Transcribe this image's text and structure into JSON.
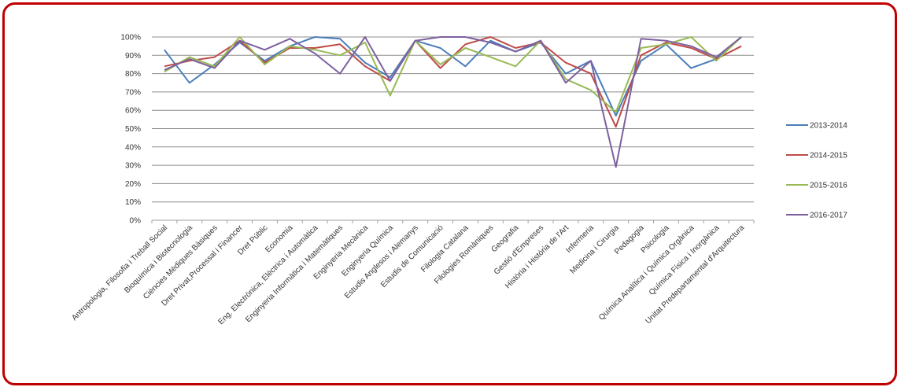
{
  "chart_data": {
    "type": "line",
    "title": "",
    "xlabel": "",
    "ylabel": "",
    "ylim": [
      0,
      100
    ],
    "y_ticks": [
      "0%",
      "10%",
      "20%",
      "30%",
      "40%",
      "50%",
      "60%",
      "70%",
      "80%",
      "90%",
      "100%"
    ],
    "grid": "horizontal",
    "legend_position": "right",
    "categories": [
      "Antropologia, Filosofia i Treball Social",
      "Bioquímica i Biotecnologia",
      "Ciències Mèdiques Bàsiques",
      "Dret Privat,Processal i Financer",
      "Dret Públic",
      "Economia",
      "Eng. Electrònica, Elèctrica i Automàtica",
      "Enginyeria Informàtica i Matemàtiques",
      "Enginyeria Mecànica",
      "Enginyeria Química",
      "Estudis Anglesos i Alemanys",
      "Estudis de Comunicació",
      "Filologia Catalana",
      "Filologies Romàniques",
      "Geografia",
      "Gestió d'Empreses",
      "Història i Història de l'Art",
      "Infermeria",
      "Medicina i Cirurgia",
      "Pedagogia",
      "Psicologia",
      "Química Analítica i Química Orgànica",
      "Química Física i Inorgànica",
      "Unitat Predepartamental d'Arquitectura"
    ],
    "series": [
      {
        "name": "2013-2014",
        "color": "#4a7ebb",
        "values": [
          93,
          75,
          85,
          97,
          87,
          95,
          100,
          99,
          86,
          78,
          98,
          94,
          84,
          98,
          92,
          97,
          80,
          87,
          57,
          87,
          96,
          83,
          88,
          100
        ]
      },
      {
        "name": "2014-2015",
        "color": "#be4b48",
        "values": [
          84,
          87,
          89,
          98,
          86,
          94,
          94,
          96,
          84,
          76,
          98,
          83,
          96,
          100,
          94,
          97,
          86,
          80,
          51,
          90,
          97,
          94,
          88,
          95
        ]
      },
      {
        "name": "2015-2016",
        "color": "#98b954",
        "values": [
          81,
          89,
          84,
          100,
          85,
          95,
          93,
          90,
          97,
          68,
          98,
          85,
          94,
          89,
          84,
          98,
          77,
          71,
          59,
          94,
          96,
          100,
          87,
          100
        ]
      },
      {
        "name": "2016-2017",
        "color": "#7d60a0",
        "values": [
          82,
          88,
          83,
          98,
          93,
          99,
          91,
          80,
          100,
          76,
          98,
          100,
          100,
          97,
          92,
          98,
          75,
          87,
          29,
          99,
          98,
          95,
          89,
          100
        ]
      }
    ]
  }
}
